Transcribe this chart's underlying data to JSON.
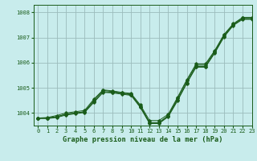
{
  "title": "Graphe pression niveau de la mer (hPa)",
  "background_color": "#c8ecec",
  "grid_color": "#9bbcbc",
  "line_color": "#1a5c1a",
  "xlim": [
    -0.5,
    23
  ],
  "ylim": [
    1003.5,
    1008.3
  ],
  "yticks": [
    1004,
    1005,
    1006,
    1007,
    1008
  ],
  "xticks": [
    0,
    1,
    2,
    3,
    4,
    5,
    6,
    7,
    8,
    9,
    10,
    11,
    12,
    13,
    14,
    15,
    16,
    17,
    18,
    19,
    20,
    21,
    22,
    23
  ],
  "series": [
    {
      "y": [
        1003.8,
        1003.8,
        1003.85,
        1003.95,
        1004.0,
        1004.05,
        1004.45,
        1004.85,
        1004.82,
        1004.78,
        1004.72,
        1004.28,
        1003.62,
        1003.62,
        1003.9,
        1004.52,
        1005.2,
        1005.85,
        1005.85,
        1006.4,
        1007.05,
        1007.5,
        1007.75,
        1007.75
      ],
      "marker": true
    },
    {
      "y": [
        1003.8,
        1003.8,
        1003.85,
        1003.95,
        1004.0,
        1004.05,
        1004.5,
        1004.9,
        1004.85,
        1004.8,
        1004.75,
        1004.25,
        1003.6,
        1003.6,
        1003.88,
        1004.58,
        1005.28,
        1005.9,
        1005.9,
        1006.45,
        1007.1,
        1007.52,
        1007.78,
        1007.78
      ],
      "marker": true
    },
    {
      "y": [
        1003.8,
        1003.82,
        1003.9,
        1004.0,
        1004.05,
        1004.1,
        1004.55,
        1004.92,
        1004.88,
        1004.82,
        1004.78,
        1004.32,
        1003.7,
        1003.7,
        1003.95,
        1004.62,
        1005.32,
        1005.95,
        1005.95,
        1006.48,
        1007.12,
        1007.55,
        1007.8,
        1007.8
      ],
      "marker": true
    },
    {
      "y": [
        1003.78,
        1003.78,
        1003.82,
        1003.92,
        1003.97,
        1004.02,
        1004.42,
        1004.82,
        1004.8,
        1004.75,
        1004.7,
        1004.22,
        1003.58,
        1003.58,
        1003.85,
        1004.48,
        1005.18,
        1005.82,
        1005.82,
        1006.38,
        1007.02,
        1007.48,
        1007.72,
        1007.72
      ],
      "marker": true
    }
  ]
}
